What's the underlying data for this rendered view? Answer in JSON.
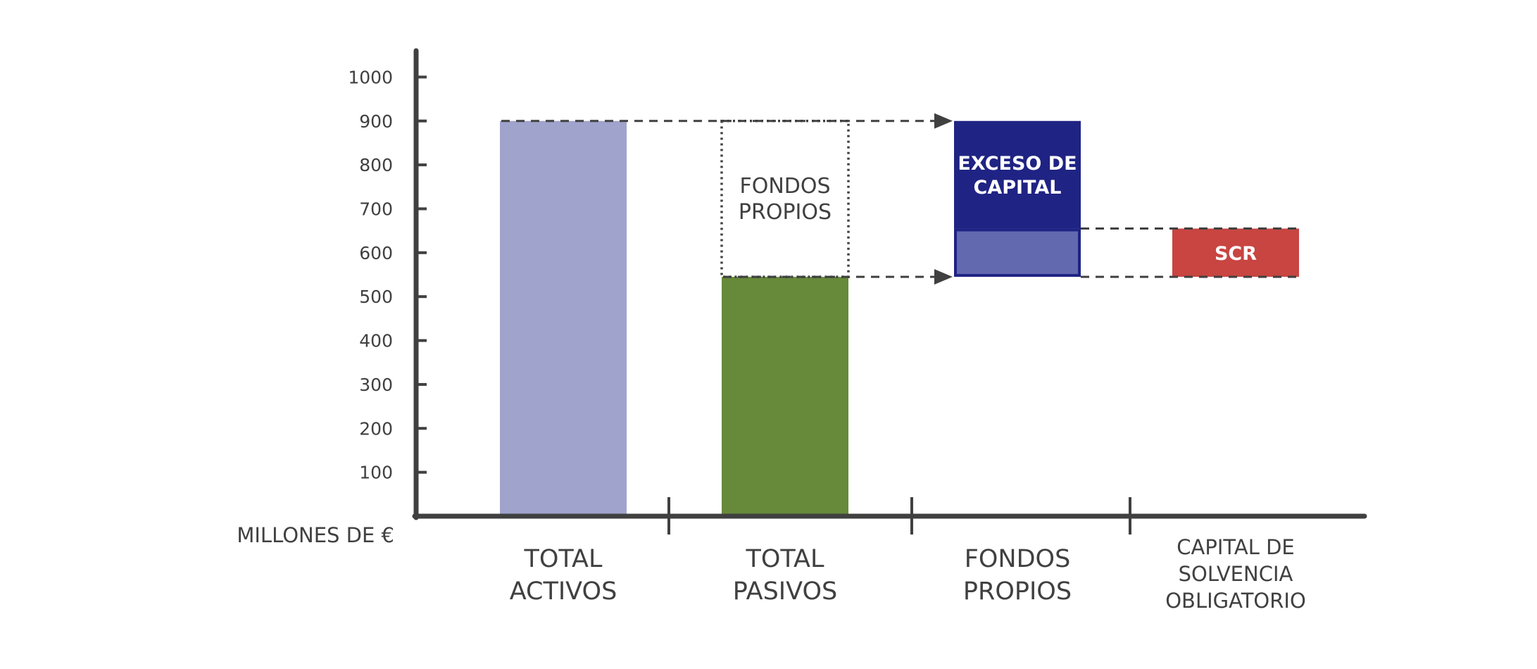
{
  "chart_data": {
    "type": "bar",
    "title": "",
    "xlabel": "",
    "ylabel": "MILLONES DE €",
    "ylim": [
      0,
      1000
    ],
    "yticks": [
      100,
      200,
      300,
      400,
      500,
      600,
      700,
      800,
      900,
      1000
    ],
    "grid": false,
    "categories": [
      [
        "TOTAL",
        "ACTIVOS"
      ],
      [
        "TOTAL",
        "PASIVOS"
      ],
      [
        "FONDOS",
        "PROPIOS"
      ],
      [
        "CAPITAL DE",
        "SOLVENCIA",
        "OBLIGATORIO"
      ]
    ],
    "series": [
      {
        "category_index": 0,
        "from": 0,
        "to": 900,
        "color": "#a0a3cc",
        "style": "solid",
        "label": []
      },
      {
        "category_index": 1,
        "from": 0,
        "to": 545,
        "color": "#67893a",
        "style": "solid",
        "label": []
      },
      {
        "category_index": 1,
        "from": 545,
        "to": 900,
        "color": "#404040",
        "style": "dotted-outline",
        "label": [
          "FONDOS",
          "PROPIOS"
        ]
      },
      {
        "category_index": 2,
        "from": 655,
        "to": 900,
        "color": "#1f2383",
        "style": "solid",
        "label": [
          "EXCESO DE",
          "CAPITAL"
        ]
      },
      {
        "category_index": 2,
        "from": 545,
        "to": 655,
        "color": "#6369af",
        "style": "outlined",
        "label": []
      },
      {
        "category_index": 3,
        "from": 545,
        "to": 655,
        "color": "#c84541",
        "style": "solid",
        "label": [
          "SCR"
        ]
      }
    ],
    "arrows": [
      {
        "value": 900,
        "from_category": 0,
        "to_category": 2
      },
      {
        "value": 545,
        "from_category": 1,
        "to_category": 2
      }
    ],
    "guides": [
      {
        "value": 655,
        "from_category": 2,
        "to_category": 3
      },
      {
        "value": 545,
        "from_category": 2,
        "to_category": 3
      }
    ]
  }
}
